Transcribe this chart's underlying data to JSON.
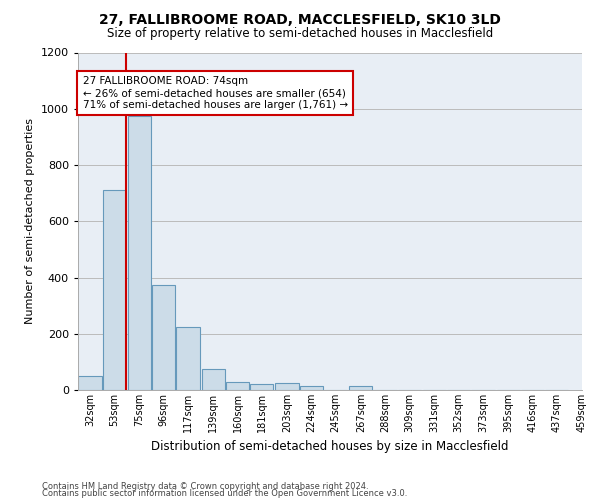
{
  "title": "27, FALLIBROOME ROAD, MACCLESFIELD, SK10 3LD",
  "subtitle": "Size of property relative to semi-detached houses in Macclesfield",
  "xlabel": "Distribution of semi-detached houses by size in Macclesfield",
  "ylabel": "Number of semi-detached properties",
  "footer_line1": "Contains HM Land Registry data © Crown copyright and database right 2024.",
  "footer_line2": "Contains public sector information licensed under the Open Government Licence v3.0.",
  "annotation_line1": "27 FALLIBROOME ROAD: 74sqm",
  "annotation_line2": "← 26% of semi-detached houses are smaller (654)",
  "annotation_line3": "71% of semi-detached houses are larger (1,761) →",
  "property_size": 74,
  "bins": [
    32,
    53,
    75,
    96,
    117,
    139,
    160,
    181,
    203,
    224,
    245,
    267,
    288,
    309,
    331,
    352,
    373,
    395,
    416,
    437,
    459
  ],
  "values": [
    50,
    710,
    975,
    375,
    225,
    75,
    30,
    20,
    25,
    15,
    0,
    15,
    0,
    0,
    0,
    0,
    0,
    0,
    0,
    0
  ],
  "bar_color": "#ccdce8",
  "bar_edge_color": "#6699bb",
  "vline_color": "#cc0000",
  "annotation_box_edge_color": "#cc0000",
  "bg_color": "#e8eef5",
  "fig_bg_color": "#ffffff",
  "grid_color": "#bbbbbb",
  "ylim": [
    0,
    1200
  ],
  "yticks": [
    0,
    200,
    400,
    600,
    800,
    1000,
    1200
  ]
}
